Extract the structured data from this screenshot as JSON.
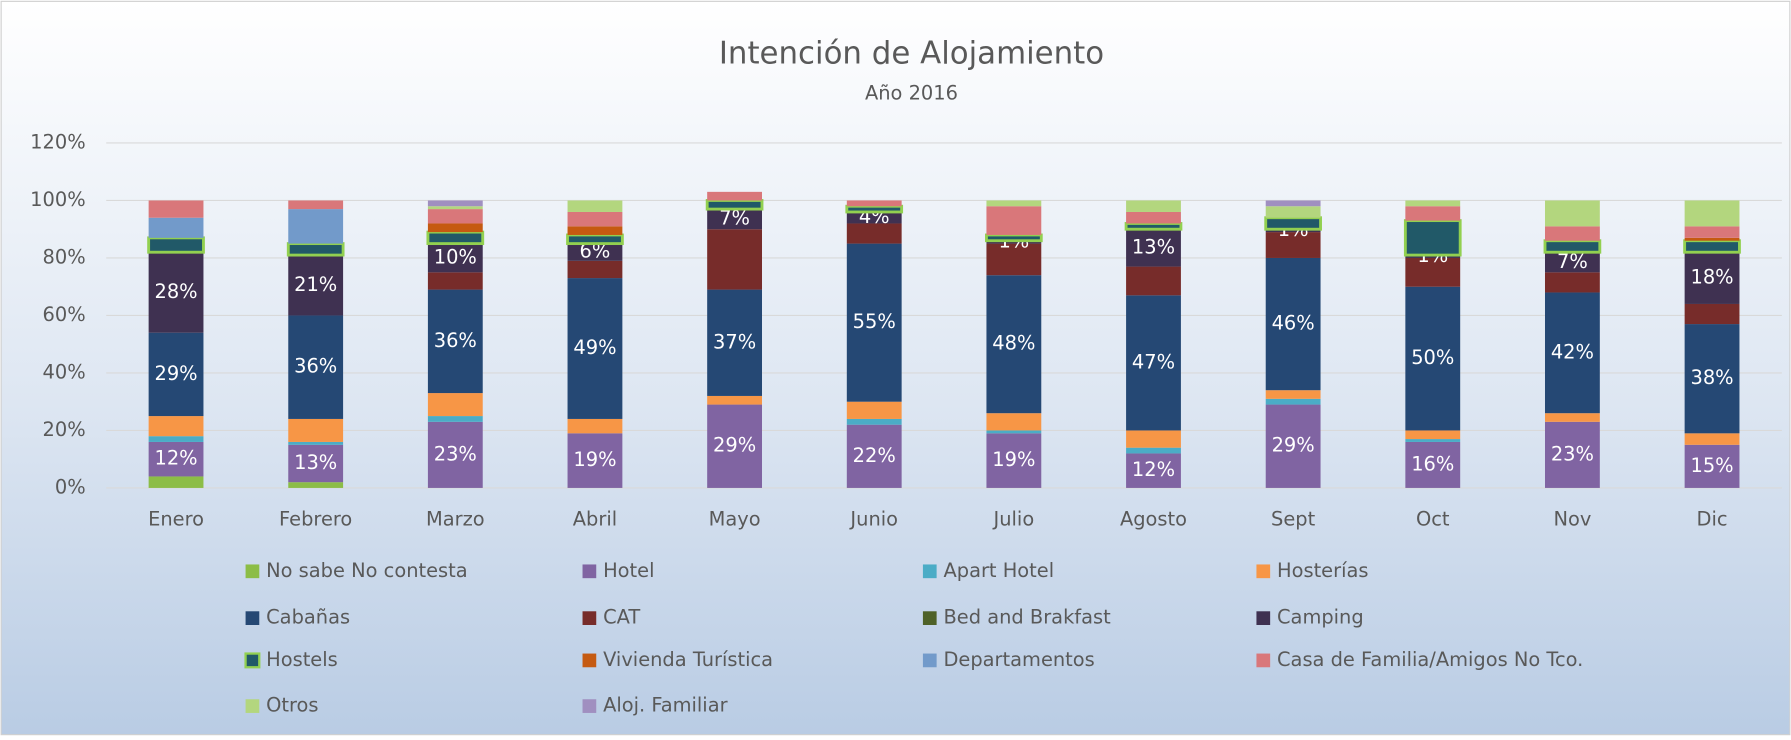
{
  "chart_data": {
    "type": "stacked_bar",
    "title": "Intención de Alojamiento",
    "subtitle": "Año 2016",
    "categories": [
      "Enero",
      "Febrero",
      "Marzo",
      "Abril",
      "Mayo",
      "Junio",
      "Julio",
      "Agosto",
      "Sept",
      "Oct",
      "Nov",
      "Dic"
    ],
    "ylim": [
      0,
      120
    ],
    "yticks": [
      {
        "value": 0,
        "label": "0%"
      },
      {
        "value": 20,
        "label": "20%"
      },
      {
        "value": 40,
        "label": "40%"
      },
      {
        "value": 60,
        "label": "60%"
      },
      {
        "value": 80,
        "label": "80%"
      },
      {
        "value": 100,
        "label": "100%"
      },
      {
        "value": 120,
        "label": "120%"
      }
    ],
    "grid": true,
    "legend": "bottom",
    "series": [
      {
        "name": "No sabe No contesta",
        "color": "#8cbd46",
        "values": [
          4,
          2,
          0,
          0,
          0,
          0,
          0,
          0,
          0,
          0,
          0,
          0
        ]
      },
      {
        "name": "Hotel",
        "color": "#8064a2",
        "values": [
          12,
          13,
          23,
          19,
          29,
          22,
          19,
          12,
          29,
          16,
          23,
          15
        ],
        "value_labels": [
          "12%",
          "13%",
          "23%",
          "19%",
          "29%",
          "22%",
          "19%",
          "12%",
          "29%",
          "16%",
          "23%",
          "15%"
        ]
      },
      {
        "name": "Apart Hotel",
        "color": "#4bacc6",
        "values": [
          2,
          1,
          2,
          0,
          0,
          2,
          1,
          2,
          2,
          1,
          0,
          0
        ]
      },
      {
        "name": "Hosterías",
        "color": "#f79646",
        "values": [
          7,
          8,
          8,
          5,
          3,
          6,
          6,
          6,
          3,
          3,
          3,
          4
        ]
      },
      {
        "name": "Cabañas",
        "color": "#254874",
        "values": [
          29,
          36,
          36,
          49,
          37,
          55,
          48,
          47,
          46,
          50,
          42,
          38
        ],
        "value_labels": [
          "29%",
          "36%",
          "36%",
          "49%",
          "37%",
          "55%",
          "48%",
          "47%",
          "46%",
          "50%",
          "42%",
          "38%"
        ]
      },
      {
        "name": "CAT",
        "color": "#772c2a",
        "values": [
          0,
          0,
          6,
          6,
          21,
          7,
          11,
          10,
          9,
          10,
          7,
          7
        ]
      },
      {
        "name": "Bed and Brakfast",
        "color": "#4f6228",
        "values": [
          0,
          0,
          0,
          0,
          0,
          0,
          0,
          0,
          0,
          0,
          0,
          0
        ]
      },
      {
        "name": "Camping",
        "color": "#3f3151",
        "values": [
          28,
          21,
          10,
          6,
          7,
          4,
          1,
          13,
          1,
          1,
          7,
          18
        ],
        "value_labels": [
          "28%",
          "21%",
          "10%",
          "6%",
          "7%",
          "4%",
          "1%",
          "13%",
          "1%",
          "1%",
          "7%",
          "18%"
        ]
      },
      {
        "name": "Hostels",
        "color": "#215968",
        "edgecolor": "#92d050",
        "values": [
          5,
          4,
          4,
          3,
          3,
          2,
          2,
          2,
          4,
          12,
          4,
          4
        ]
      },
      {
        "name": "Vivienda Turística",
        "color": "#c55a11",
        "values": [
          0,
          0,
          3,
          3,
          0,
          0,
          0,
          0,
          0,
          0,
          0,
          1
        ]
      },
      {
        "name": "Departamentos",
        "color": "#729aca",
        "values": [
          7,
          12,
          0,
          0,
          0,
          0,
          0,
          0,
          0,
          0,
          0,
          0
        ]
      },
      {
        "name": "Casa de Familia/Amigos No Tco.",
        "color": "#d9777a",
        "values": [
          6,
          3,
          5,
          5,
          3,
          2,
          10,
          4,
          0,
          5,
          5,
          4
        ]
      },
      {
        "name": "Otros",
        "color": "#b3d67e",
        "values": [
          0,
          0,
          1,
          4,
          0,
          0,
          2,
          4,
          4,
          2,
          9,
          9
        ]
      },
      {
        "name": "Aloj. Familiar",
        "color": "#a08fc0",
        "values": [
          0,
          0,
          2,
          0,
          0,
          0,
          0,
          0,
          2,
          0,
          0,
          0
        ]
      }
    ]
  }
}
